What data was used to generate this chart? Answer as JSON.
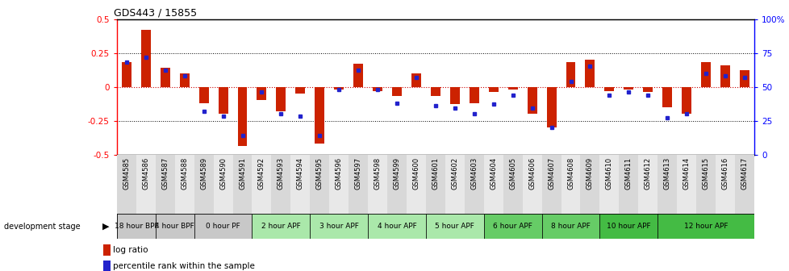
{
  "title": "GDS443 / 15855",
  "samples": [
    "GSM4585",
    "GSM4586",
    "GSM4587",
    "GSM4588",
    "GSM4589",
    "GSM4590",
    "GSM4591",
    "GSM4592",
    "GSM4593",
    "GSM4594",
    "GSM4595",
    "GSM4596",
    "GSM4597",
    "GSM4598",
    "GSM4599",
    "GSM4600",
    "GSM4601",
    "GSM4602",
    "GSM4603",
    "GSM4604",
    "GSM4605",
    "GSM4606",
    "GSM4607",
    "GSM4608",
    "GSM4609",
    "GSM4610",
    "GSM4611",
    "GSM4612",
    "GSM4613",
    "GSM4614",
    "GSM4615",
    "GSM4616",
    "GSM4617"
  ],
  "log_ratio": [
    0.18,
    0.42,
    0.14,
    0.1,
    -0.12,
    -0.2,
    -0.44,
    -0.1,
    -0.18,
    -0.05,
    -0.42,
    -0.02,
    0.17,
    -0.03,
    -0.07,
    0.1,
    -0.07,
    -0.13,
    -0.12,
    -0.04,
    -0.02,
    -0.2,
    -0.3,
    0.18,
    0.2,
    -0.03,
    -0.02,
    -0.04,
    -0.15,
    -0.2,
    0.18,
    0.16,
    0.12
  ],
  "percentile": [
    68,
    72,
    62,
    58,
    32,
    28,
    14,
    46,
    30,
    28,
    14,
    48,
    62,
    48,
    38,
    57,
    36,
    34,
    30,
    37,
    44,
    34,
    20,
    54,
    65,
    44,
    46,
    44,
    27,
    30,
    60,
    58,
    57
  ],
  "stage_groups": [
    {
      "label": "18 hour BPF",
      "start": 0,
      "end": 2,
      "color": "#c8c8c8"
    },
    {
      "label": "4 hour BPF",
      "start": 2,
      "end": 4,
      "color": "#c8c8c8"
    },
    {
      "label": "0 hour PF",
      "start": 4,
      "end": 7,
      "color": "#c8c8c8"
    },
    {
      "label": "2 hour APF",
      "start": 7,
      "end": 10,
      "color": "#aae8aa"
    },
    {
      "label": "3 hour APF",
      "start": 10,
      "end": 13,
      "color": "#aae8aa"
    },
    {
      "label": "4 hour APF",
      "start": 13,
      "end": 16,
      "color": "#aae8aa"
    },
    {
      "label": "5 hour APF",
      "start": 16,
      "end": 19,
      "color": "#aae8aa"
    },
    {
      "label": "6 hour APF",
      "start": 19,
      "end": 22,
      "color": "#66cc66"
    },
    {
      "label": "8 hour APF",
      "start": 22,
      "end": 25,
      "color": "#66cc66"
    },
    {
      "label": "10 hour APF",
      "start": 25,
      "end": 28,
      "color": "#44bb44"
    },
    {
      "label": "12 hour APF",
      "start": 28,
      "end": 33,
      "color": "#44bb44"
    }
  ],
  "ylim": [
    -0.5,
    0.5
  ],
  "y2lim": [
    0,
    100
  ],
  "bar_color": "#cc2200",
  "dot_color": "#2222cc",
  "zero_line_color": "#cc0000",
  "title_fontsize": 9,
  "tick_bg_odd": "#d8d8d8",
  "tick_bg_even": "#e8e8e8"
}
